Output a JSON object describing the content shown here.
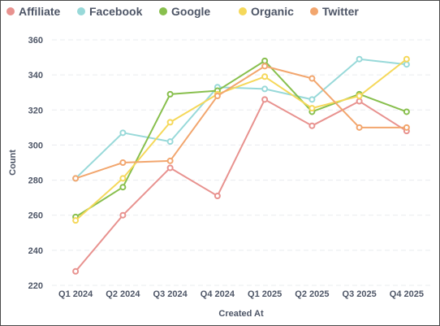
{
  "chart_data": {
    "type": "line",
    "categories": [
      "Q1 2024",
      "Q2 2024",
      "Q3 2024",
      "Q4 2024",
      "Q1 2025",
      "Q2 2025",
      "Q3 2025",
      "Q4 2025"
    ],
    "xlabel": "Created At",
    "ylabel": "Count",
    "ylim": [
      220,
      360
    ],
    "yticks": [
      220,
      240,
      260,
      280,
      300,
      320,
      340,
      360
    ],
    "grid": "horizontal dashed",
    "legend": "top",
    "series": [
      {
        "name": "Affiliate",
        "color": "#e8928f",
        "values": [
          228,
          260,
          287,
          271,
          326,
          311,
          325,
          308
        ]
      },
      {
        "name": "Facebook",
        "color": "#98d9d9",
        "values": [
          281,
          307,
          302,
          333,
          332,
          326,
          349,
          346
        ]
      },
      {
        "name": "Google",
        "color": "#88bf4d",
        "values": [
          259,
          276,
          329,
          331,
          348,
          319,
          329,
          319
        ]
      },
      {
        "name": "Organic",
        "color": "#f5d85a",
        "values": [
          257,
          281,
          313,
          329,
          339,
          321,
          328,
          349
        ]
      },
      {
        "name": "Twitter",
        "color": "#f2a66e",
        "values": [
          281,
          290,
          291,
          328,
          345,
          338,
          310,
          310
        ]
      }
    ]
  }
}
